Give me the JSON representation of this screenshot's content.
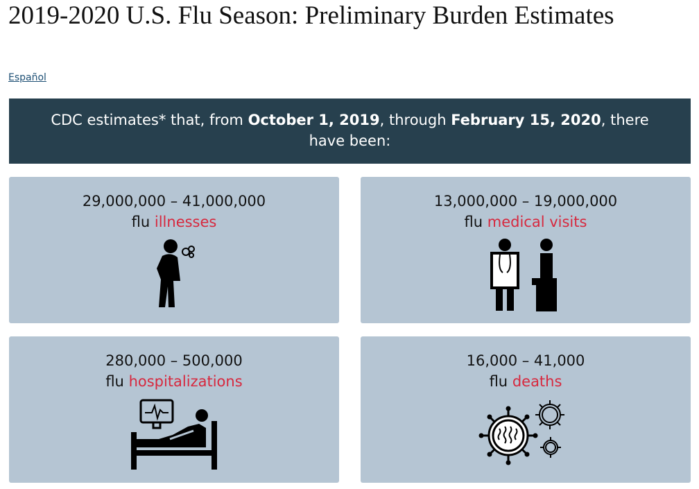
{
  "header": {
    "title": "2019-2020 U.S. Flu Season: Preliminary Burden Estimates",
    "language_link": "Español"
  },
  "banner": {
    "parts": [
      "CDC estimates* that, from ",
      "October 1, 2019",
      ", through ",
      "February 15, 2020",
      ", there have been:"
    ]
  },
  "cards": [
    {
      "range": "29,000,000 – 41,000,000",
      "prefix": "flu",
      "label": "illnesses"
    },
    {
      "range": "13,000,000 – 19,000,000",
      "prefix": "flu",
      "label": "medical visits"
    },
    {
      "range": "280,000 – 500,000",
      "prefix": "flu",
      "label": "hospitalizations"
    },
    {
      "range": "16,000 – 41,000",
      "prefix": "flu",
      "label": "deaths"
    }
  ]
}
